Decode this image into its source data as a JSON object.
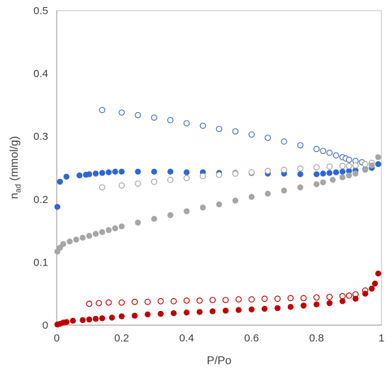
{
  "chart_data": {
    "type": "scatter",
    "xlabel": "P/Po",
    "ylabel": {
      "main": "n",
      "sub": "ad",
      "unit": " (mmol/g)"
    },
    "xlim": [
      0,
      1
    ],
    "ylim": [
      0,
      0.5
    ],
    "x_ticks": [
      "0",
      "0.2",
      "0.4",
      "0.6",
      "0.8",
      "1"
    ],
    "y_ticks": [
      "0",
      "0.1",
      "0.2",
      "0.3",
      "0.4",
      "0.5"
    ],
    "grid": false,
    "legend": "none",
    "series": [
      {
        "color": "#4472C4",
        "filled": false,
        "x": [
          0.14,
          0.2,
          0.25,
          0.3,
          0.35,
          0.4,
          0.45,
          0.5,
          0.55,
          0.6,
          0.65,
          0.7,
          0.75,
          0.8,
          0.82,
          0.84,
          0.86,
          0.88,
          0.89,
          0.9,
          0.92,
          0.94
        ],
        "y": [
          0.342,
          0.338,
          0.334,
          0.33,
          0.326,
          0.321,
          0.317,
          0.312,
          0.308,
          0.303,
          0.298,
          0.292,
          0.286,
          0.28,
          0.277,
          0.274,
          0.27,
          0.267,
          0.265,
          0.263,
          0.261,
          0.259
        ]
      },
      {
        "color": "#2E66D4",
        "filled": true,
        "x": [
          0.002,
          0.01,
          0.03,
          0.07,
          0.09,
          0.1,
          0.12,
          0.14,
          0.16,
          0.18,
          0.2,
          0.25,
          0.3,
          0.35,
          0.4,
          0.45,
          0.5,
          0.55,
          0.6,
          0.65,
          0.7,
          0.75,
          0.8,
          0.82,
          0.84,
          0.86,
          0.88,
          0.9,
          0.92,
          0.95,
          0.97,
          0.99
        ],
        "y": [
          0.188,
          0.228,
          0.236,
          0.238,
          0.239,
          0.24,
          0.241,
          0.242,
          0.243,
          0.244,
          0.244,
          0.244,
          0.244,
          0.244,
          0.243,
          0.243,
          0.242,
          0.242,
          0.242,
          0.241,
          0.241,
          0.24,
          0.24,
          0.241,
          0.242,
          0.243,
          0.244,
          0.245,
          0.246,
          0.248,
          0.25,
          0.256
        ]
      },
      {
        "color": "#A6A6A6",
        "filled": false,
        "x": [
          0.14,
          0.2,
          0.25,
          0.3,
          0.35,
          0.4,
          0.45,
          0.5,
          0.55,
          0.6,
          0.65,
          0.7,
          0.75,
          0.8,
          0.84,
          0.88,
          0.9,
          0.92,
          0.95,
          0.97
        ],
        "y": [
          0.219,
          0.222,
          0.225,
          0.228,
          0.231,
          0.234,
          0.237,
          0.239,
          0.241,
          0.243,
          0.245,
          0.247,
          0.249,
          0.251,
          0.252,
          0.253,
          0.253,
          0.254,
          0.256,
          0.258
        ]
      },
      {
        "color": "#A6A6A6",
        "filled": true,
        "x": [
          0.002,
          0.01,
          0.02,
          0.04,
          0.06,
          0.08,
          0.1,
          0.12,
          0.14,
          0.16,
          0.18,
          0.2,
          0.25,
          0.3,
          0.35,
          0.4,
          0.45,
          0.5,
          0.55,
          0.6,
          0.65,
          0.7,
          0.75,
          0.8,
          0.82,
          0.85,
          0.88,
          0.9,
          0.92,
          0.95,
          0.97,
          0.99
        ],
        "y": [
          0.117,
          0.123,
          0.129,
          0.133,
          0.136,
          0.139,
          0.142,
          0.145,
          0.148,
          0.151,
          0.154,
          0.157,
          0.163,
          0.169,
          0.175,
          0.181,
          0.187,
          0.192,
          0.198,
          0.204,
          0.209,
          0.214,
          0.219,
          0.224,
          0.227,
          0.231,
          0.235,
          0.238,
          0.241,
          0.247,
          0.254,
          0.267
        ]
      },
      {
        "color": "#C00000",
        "filled": false,
        "x": [
          0.1,
          0.13,
          0.16,
          0.2,
          0.24,
          0.28,
          0.32,
          0.36,
          0.4,
          0.44,
          0.48,
          0.52,
          0.56,
          0.6,
          0.64,
          0.68,
          0.72,
          0.76,
          0.8,
          0.84,
          0.88,
          0.9,
          0.92,
          0.95
        ],
        "y": [
          0.034,
          0.035,
          0.036,
          0.036,
          0.037,
          0.037,
          0.038,
          0.038,
          0.039,
          0.039,
          0.04,
          0.04,
          0.041,
          0.041,
          0.042,
          0.042,
          0.043,
          0.043,
          0.044,
          0.045,
          0.046,
          0.047,
          0.049,
          0.055
        ]
      },
      {
        "color": "#C00000",
        "filled": true,
        "x": [
          0.002,
          0.01,
          0.02,
          0.03,
          0.05,
          0.08,
          0.1,
          0.12,
          0.14,
          0.17,
          0.2,
          0.24,
          0.28,
          0.32,
          0.36,
          0.4,
          0.44,
          0.48,
          0.52,
          0.56,
          0.6,
          0.64,
          0.68,
          0.72,
          0.76,
          0.8,
          0.84,
          0.88,
          0.92,
          0.95,
          0.97,
          0.98,
          0.99
        ],
        "y": [
          0.001,
          0.002,
          0.004,
          0.005,
          0.007,
          0.008,
          0.009,
          0.01,
          0.011,
          0.012,
          0.014,
          0.015,
          0.017,
          0.018,
          0.019,
          0.02,
          0.021,
          0.022,
          0.023,
          0.024,
          0.025,
          0.026,
          0.027,
          0.029,
          0.031,
          0.033,
          0.035,
          0.038,
          0.042,
          0.05,
          0.058,
          0.066,
          0.082
        ]
      }
    ]
  }
}
